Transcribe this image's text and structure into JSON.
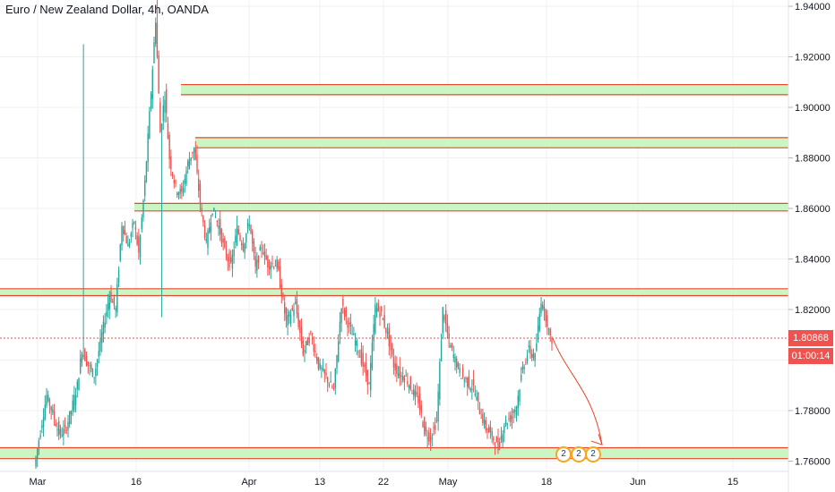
{
  "header": {
    "title": "Euro / New Zealand Dollar, 4h, OANDA"
  },
  "colors": {
    "up": "#26a69a",
    "down": "#ef5350",
    "zone_fill": "#ccf5c4",
    "zone_edge": "#e8472c",
    "price_line": "#ef5350",
    "grid": "#eef0f3",
    "axis_text": "#131722",
    "badge_price": "#ef5350",
    "badge_time": "#ef5350",
    "event_ring": "#f5a623"
  },
  "price_axis": {
    "ticks": [
      "1.94000",
      "1.92000",
      "1.90000",
      "1.88000",
      "1.86000",
      "1.84000",
      "1.82000",
      "1.80000",
      "1.78000",
      "1.76000"
    ]
  },
  "time_axis": {
    "ticks": [
      "Mar",
      "16",
      "Apr",
      "13",
      "22",
      "May",
      "18",
      "Jun",
      "15"
    ]
  },
  "current": {
    "price": "1.80868",
    "countdown": "01:00:14"
  },
  "events": [
    {
      "label": "2"
    },
    {
      "label": "2"
    },
    {
      "label": "2"
    }
  ],
  "chart_data": {
    "type": "candlestick",
    "symbol": "Euro / New Zealand Dollar",
    "interval": "4h",
    "source": "OANDA",
    "ylim": [
      1.758,
      1.943
    ],
    "last_price": 1.80868,
    "zones": [
      {
        "top": 1.909,
        "bottom": 1.905
      },
      {
        "top": 1.888,
        "bottom": 1.884
      },
      {
        "top": 1.862,
        "bottom": 1.859
      },
      {
        "top": 1.8282,
        "bottom": 1.8255
      },
      {
        "top": 1.7653,
        "bottom": 1.761
      }
    ],
    "projection": {
      "from": 1.8087,
      "to": 1.7665
    },
    "price_path": [
      [
        0,
        1.758
      ],
      [
        4,
        1.772
      ],
      [
        8,
        1.786
      ],
      [
        12,
        1.779
      ],
      [
        16,
        1.771
      ],
      [
        20,
        1.772
      ],
      [
        24,
        1.78
      ],
      [
        28,
        1.79
      ],
      [
        31,
        1.804
      ],
      [
        35,
        1.798
      ],
      [
        39,
        1.794
      ],
      [
        44,
        1.81
      ],
      [
        49,
        1.826
      ],
      [
        53,
        1.82
      ],
      [
        57,
        1.854
      ],
      [
        61,
        1.845
      ],
      [
        65,
        1.855
      ],
      [
        68,
        1.842
      ],
      [
        72,
        1.87
      ],
      [
        76,
        1.906
      ],
      [
        79,
        1.935
      ],
      [
        82,
        1.89
      ],
      [
        85,
        1.905
      ],
      [
        88,
        1.88
      ],
      [
        92,
        1.868
      ],
      [
        96,
        1.866
      ],
      [
        100,
        1.878
      ],
      [
        104,
        1.884
      ],
      [
        108,
        1.862
      ],
      [
        112,
        1.846
      ],
      [
        116,
        1.86
      ],
      [
        120,
        1.853
      ],
      [
        124,
        1.843
      ],
      [
        128,
        1.837
      ],
      [
        132,
        1.852
      ],
      [
        136,
        1.845
      ],
      [
        140,
        1.855
      ],
      [
        144,
        1.836
      ],
      [
        148,
        1.845
      ],
      [
        152,
        1.838
      ],
      [
        158,
        1.838
      ],
      [
        164,
        1.815
      ],
      [
        170,
        1.822
      ],
      [
        175,
        1.803
      ],
      [
        180,
        1.81
      ],
      [
        185,
        1.798
      ],
      [
        190,
        1.793
      ],
      [
        195,
        1.788
      ],
      [
        200,
        1.822
      ],
      [
        205,
        1.813
      ],
      [
        210,
        1.806
      ],
      [
        214,
        1.798
      ],
      [
        218,
        1.79
      ],
      [
        222,
        1.821
      ],
      [
        226,
        1.818
      ],
      [
        230,
        1.81
      ],
      [
        234,
        1.798
      ],
      [
        238,
        1.794
      ],
      [
        242,
        1.793
      ],
      [
        246,
        1.788
      ],
      [
        250,
        1.784
      ],
      [
        254,
        1.772
      ],
      [
        258,
        1.769
      ],
      [
        262,
        1.776
      ],
      [
        266,
        1.82
      ],
      [
        270,
        1.807
      ],
      [
        274,
        1.8
      ],
      [
        278,
        1.794
      ],
      [
        282,
        1.791
      ],
      [
        286,
        1.789
      ],
      [
        290,
        1.78
      ],
      [
        294,
        1.773
      ],
      [
        298,
        1.77
      ],
      [
        302,
        1.765
      ],
      [
        306,
        1.775
      ],
      [
        310,
        1.777
      ],
      [
        314,
        1.782
      ],
      [
        318,
        1.797
      ],
      [
        322,
        1.804
      ],
      [
        326,
        1.801
      ],
      [
        330,
        1.824
      ],
      [
        334,
        1.815
      ],
      [
        336,
        1.808
      ]
    ]
  }
}
